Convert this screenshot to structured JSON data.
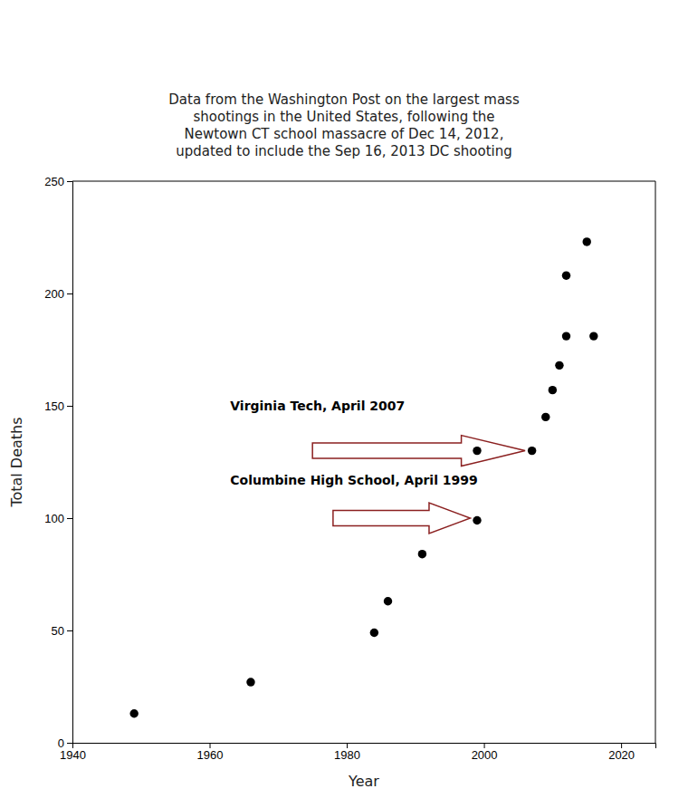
{
  "chart_data": {
    "type": "scatter",
    "title": "Data from the Washington Post on the largest mass\nshootings in the United States, following the\nNewtown CT school massacre of Dec 14, 2012,\nupdated to include the Sep 16, 2013 DC shooting",
    "x_label": "Year",
    "y_label": "Total Deaths",
    "x": [
      1949,
      1966,
      1984,
      1986,
      1991,
      1999,
      1999,
      2007,
      2009,
      2010,
      2011,
      2012,
      2012,
      2015,
      2016
    ],
    "values": [
      13,
      27,
      49,
      63,
      84,
      99,
      130,
      130,
      145,
      157,
      168,
      181,
      208,
      223,
      181
    ],
    "color": "black",
    "marker": "circle",
    "xlim": [
      1940,
      2025
    ],
    "ylim": [
      0,
      250
    ],
    "xticks": [
      1940,
      1960,
      1980,
      2000,
      2020
    ],
    "yticks": [
      0,
      50,
      100,
      150,
      200,
      250
    ],
    "grid": false,
    "annotations": [
      {
        "text": "Virginia Tech, April 2007",
        "x": 1963,
        "y": 148,
        "arrow": {
          "x_start": 1975,
          "x_end": 2006,
          "y": 130,
          "color": "#8B2020"
        }
      },
      {
        "text": "Columbine High School, April 1999",
        "x": 1963,
        "y": 115,
        "arrow": {
          "x_start": 1978,
          "x_end": 1998,
          "y": 100,
          "color": "#8B2020"
        }
      }
    ]
  }
}
